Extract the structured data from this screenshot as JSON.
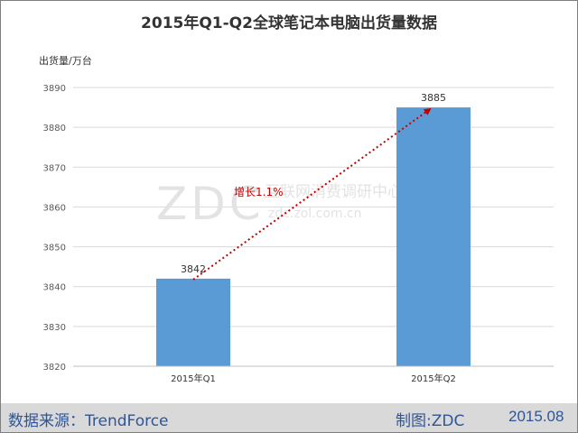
{
  "chart_data": {
    "type": "bar",
    "title": "2015年Q1-Q2全球笔记本电脑出货量数据",
    "ylabel": "出货量/万台",
    "xlabel": "",
    "categories": [
      "2015年Q1",
      "2015年Q2"
    ],
    "values": [
      3842,
      3885
    ],
    "data_labels": [
      "3842",
      "3885"
    ],
    "ylim": [
      3820,
      3890
    ],
    "yticks": [
      3820,
      3830,
      3840,
      3850,
      3860,
      3870,
      3880,
      3890
    ],
    "grid": true,
    "bar_color": "#5b9bd5",
    "annotation": {
      "text": "增长1.1%",
      "color": "#c00000",
      "from_category": "2015年Q1",
      "to_category": "2015年Q2",
      "arrow_style": "dotted"
    }
  },
  "watermark": {
    "logo": "ZDC",
    "text_cn": "互联网消费调研中心",
    "url": "zdc.zol.com.cn"
  },
  "footer": {
    "source": "数据来源：TrendForce",
    "maker": "制图:ZDC",
    "date": "2015.08"
  }
}
